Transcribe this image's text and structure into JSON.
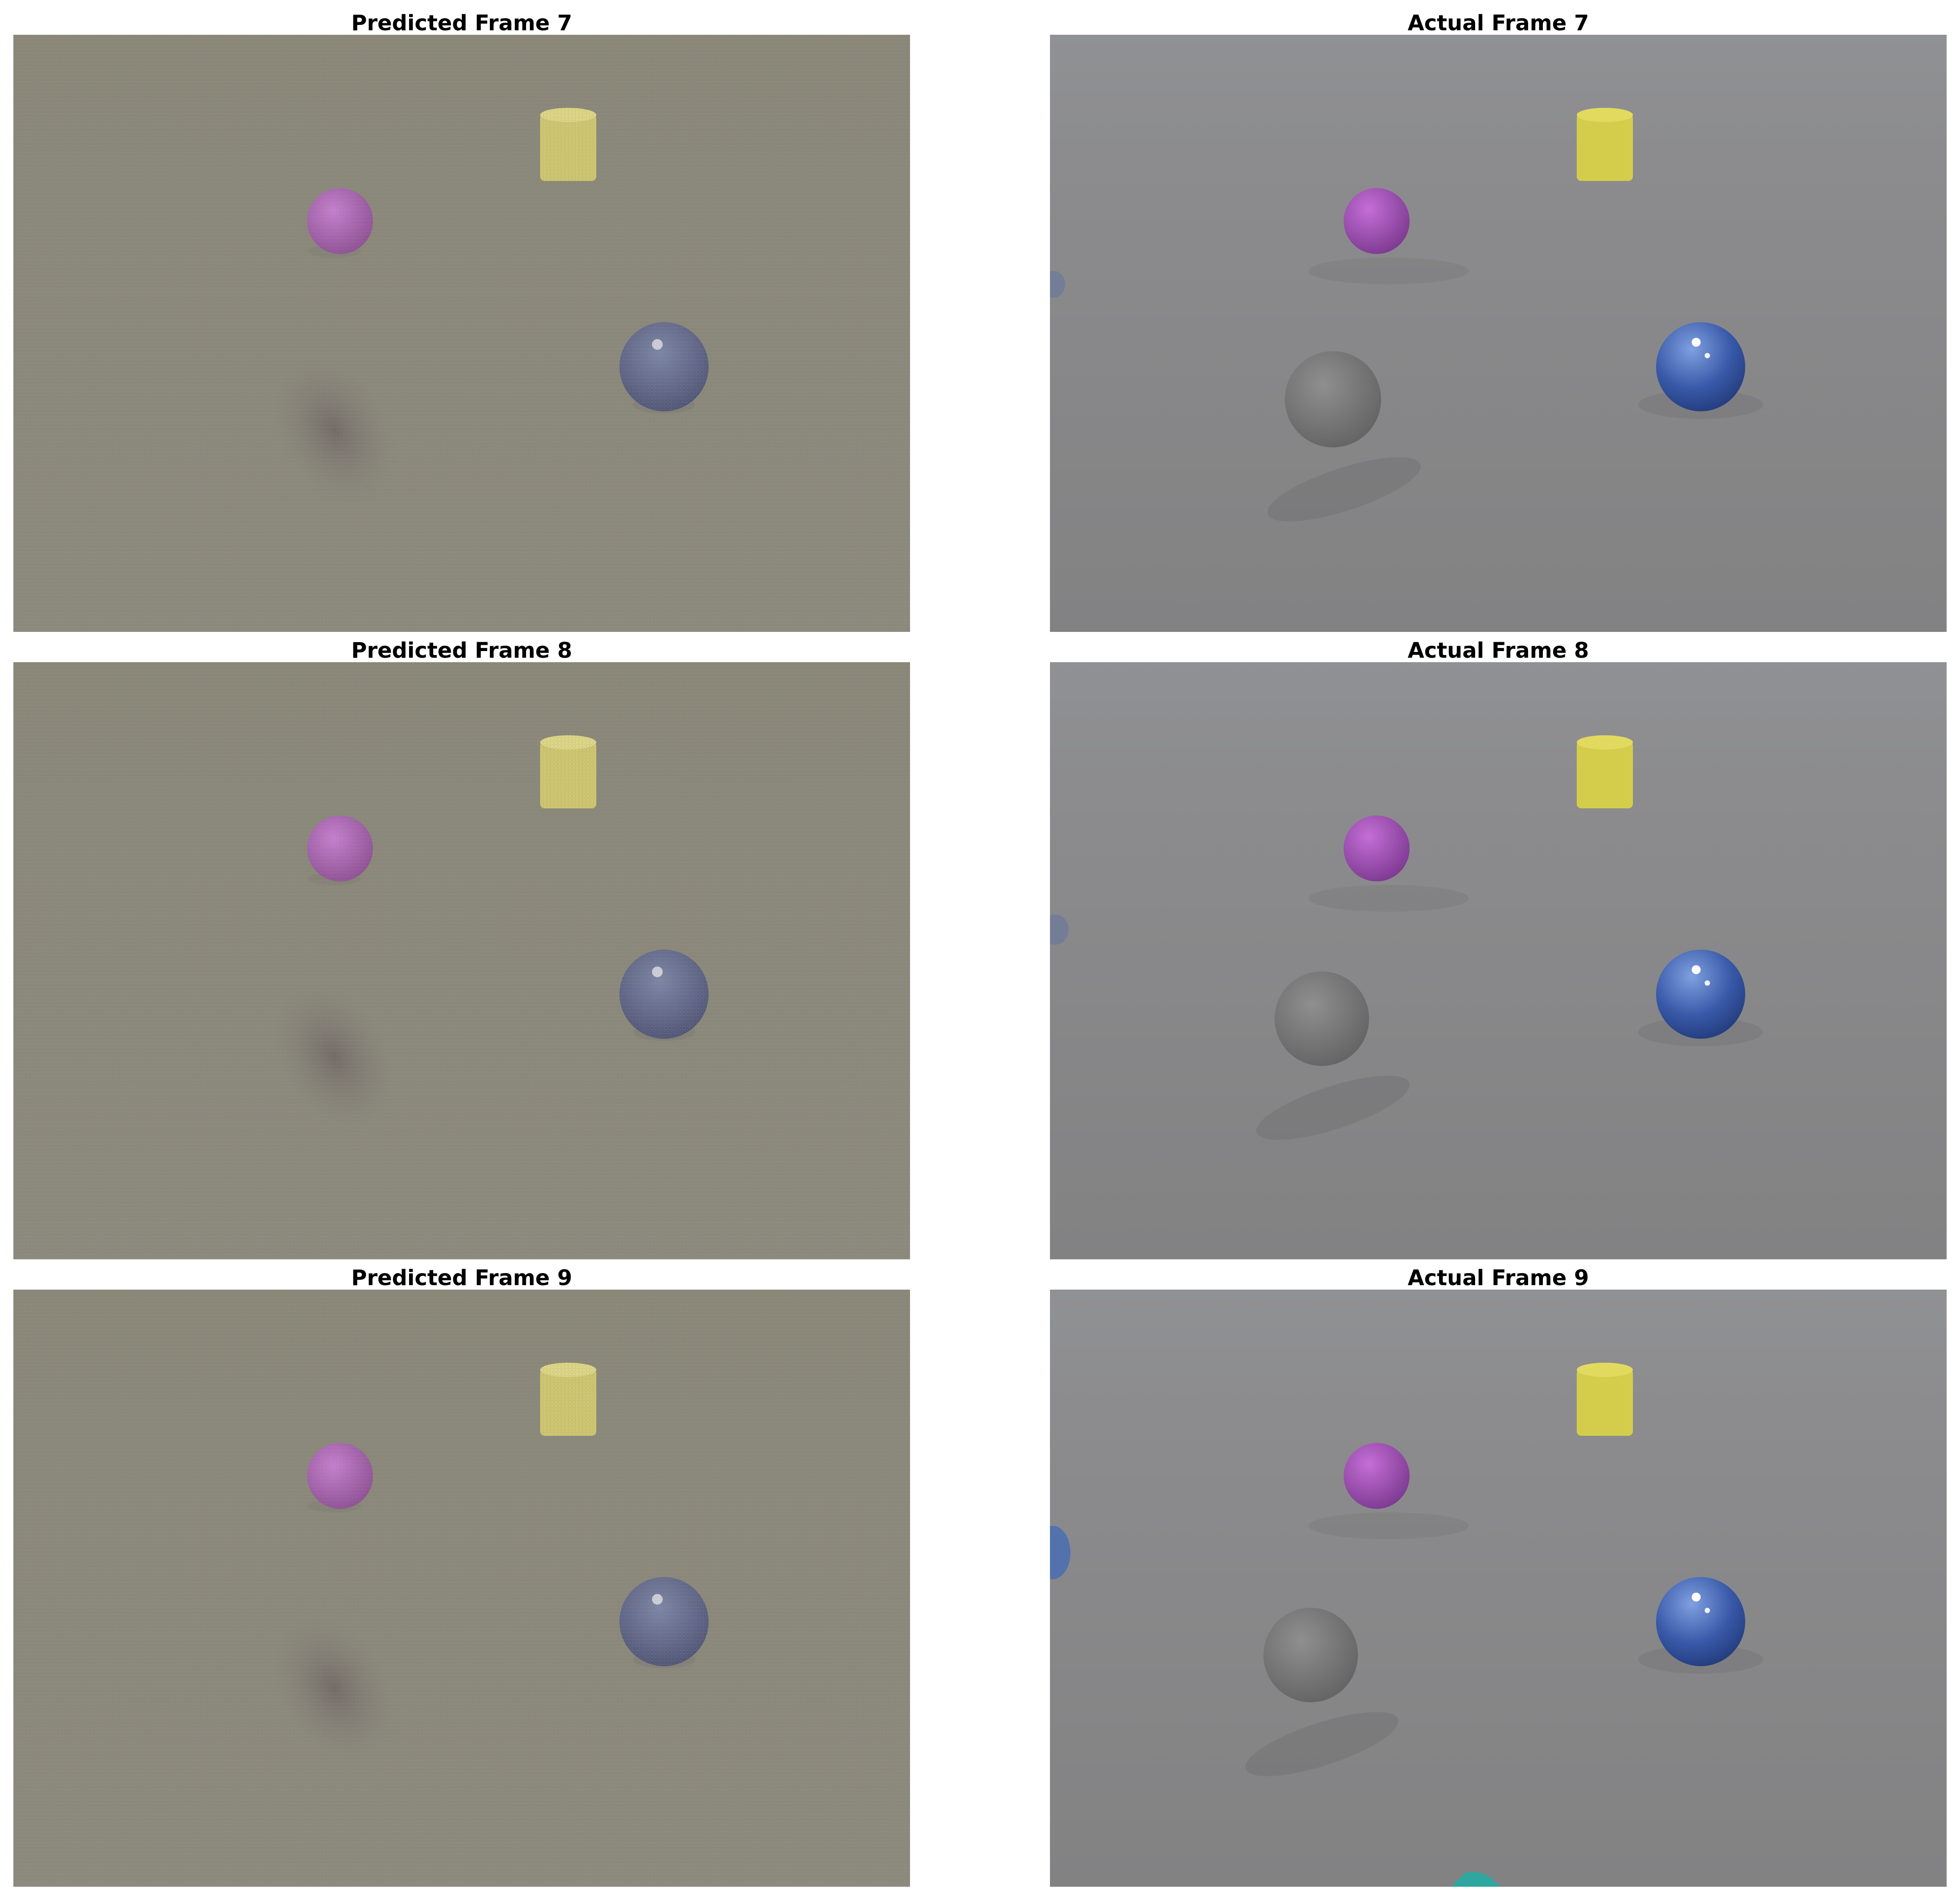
{
  "panels": [
    {
      "title": "Predicted Frame 7",
      "kind": "predicted"
    },
    {
      "title": "Actual Frame 7",
      "kind": "actual"
    },
    {
      "title": "Predicted Frame 8",
      "kind": "predicted"
    },
    {
      "title": "Actual Frame 8",
      "kind": "actual"
    },
    {
      "title": "Predicted Frame 9",
      "kind": "predicted"
    },
    {
      "title": "Actual Frame 9",
      "kind": "actual"
    }
  ],
  "colors": {
    "predicted_floor": "#8f8c80",
    "actual_floor": "#8a8a8c",
    "purple_sphere": "#a050b8",
    "yellow_cylinder": "#d6cf50",
    "blue_sphere": "#3a5db0",
    "gray_sphere": "#808080",
    "teal_object": "#2fa7a0"
  }
}
